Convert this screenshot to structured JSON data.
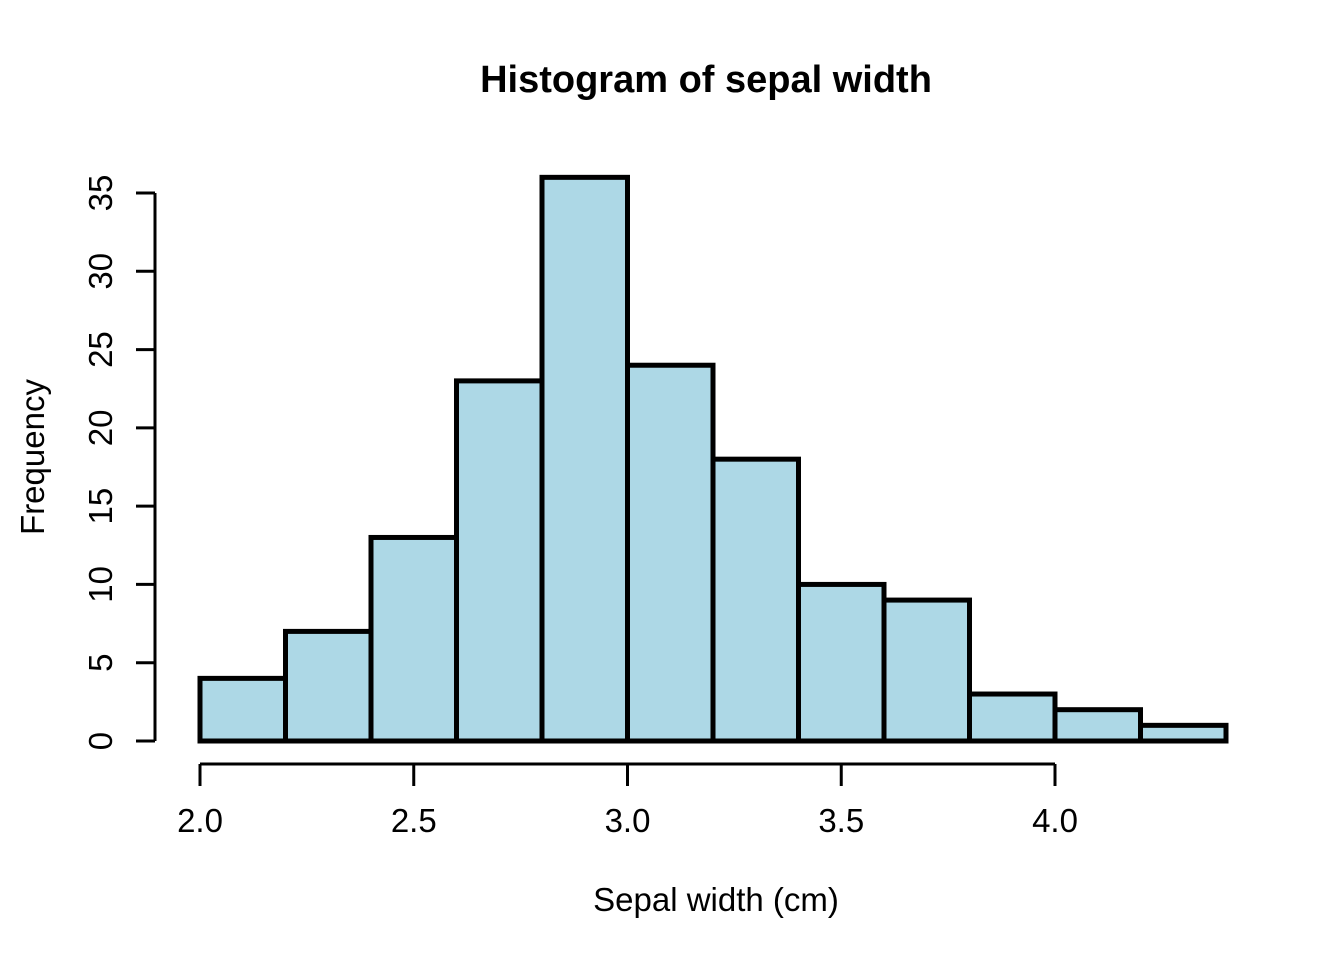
{
  "chart_data": {
    "type": "bar",
    "subtype": "histogram",
    "title": "Histogram of sepal width",
    "xlabel": "Sepal width (cm)",
    "ylabel": "Frequency",
    "bin_start": 2.0,
    "bin_width": 0.2,
    "bin_edges": [
      2.0,
      2.2,
      2.4,
      2.6,
      2.8,
      3.0,
      3.2,
      3.4,
      3.6,
      3.8,
      4.0,
      4.2,
      4.4
    ],
    "counts": [
      4,
      7,
      13,
      23,
      36,
      24,
      18,
      10,
      9,
      3,
      2,
      1
    ],
    "x_tick_values": [
      2.0,
      2.5,
      3.0,
      3.5,
      4.0
    ],
    "x_tick_labels": [
      "2.0",
      "2.5",
      "3.0",
      "3.5",
      "4.0"
    ],
    "y_tick_values": [
      0,
      5,
      10,
      15,
      20,
      25,
      30,
      35
    ],
    "y_tick_labels": [
      "0",
      "5",
      "10",
      "15",
      "20",
      "25",
      "30",
      "35"
    ],
    "xlim": [
      2.0,
      4.4
    ],
    "ylim": [
      0,
      36
    ],
    "grid": false,
    "legend": null,
    "colors": {
      "bar_fill": "#ADD8E6",
      "bar_stroke": "#000000",
      "axis": "#000000",
      "text": "#000000",
      "background": "#FFFFFF"
    }
  }
}
